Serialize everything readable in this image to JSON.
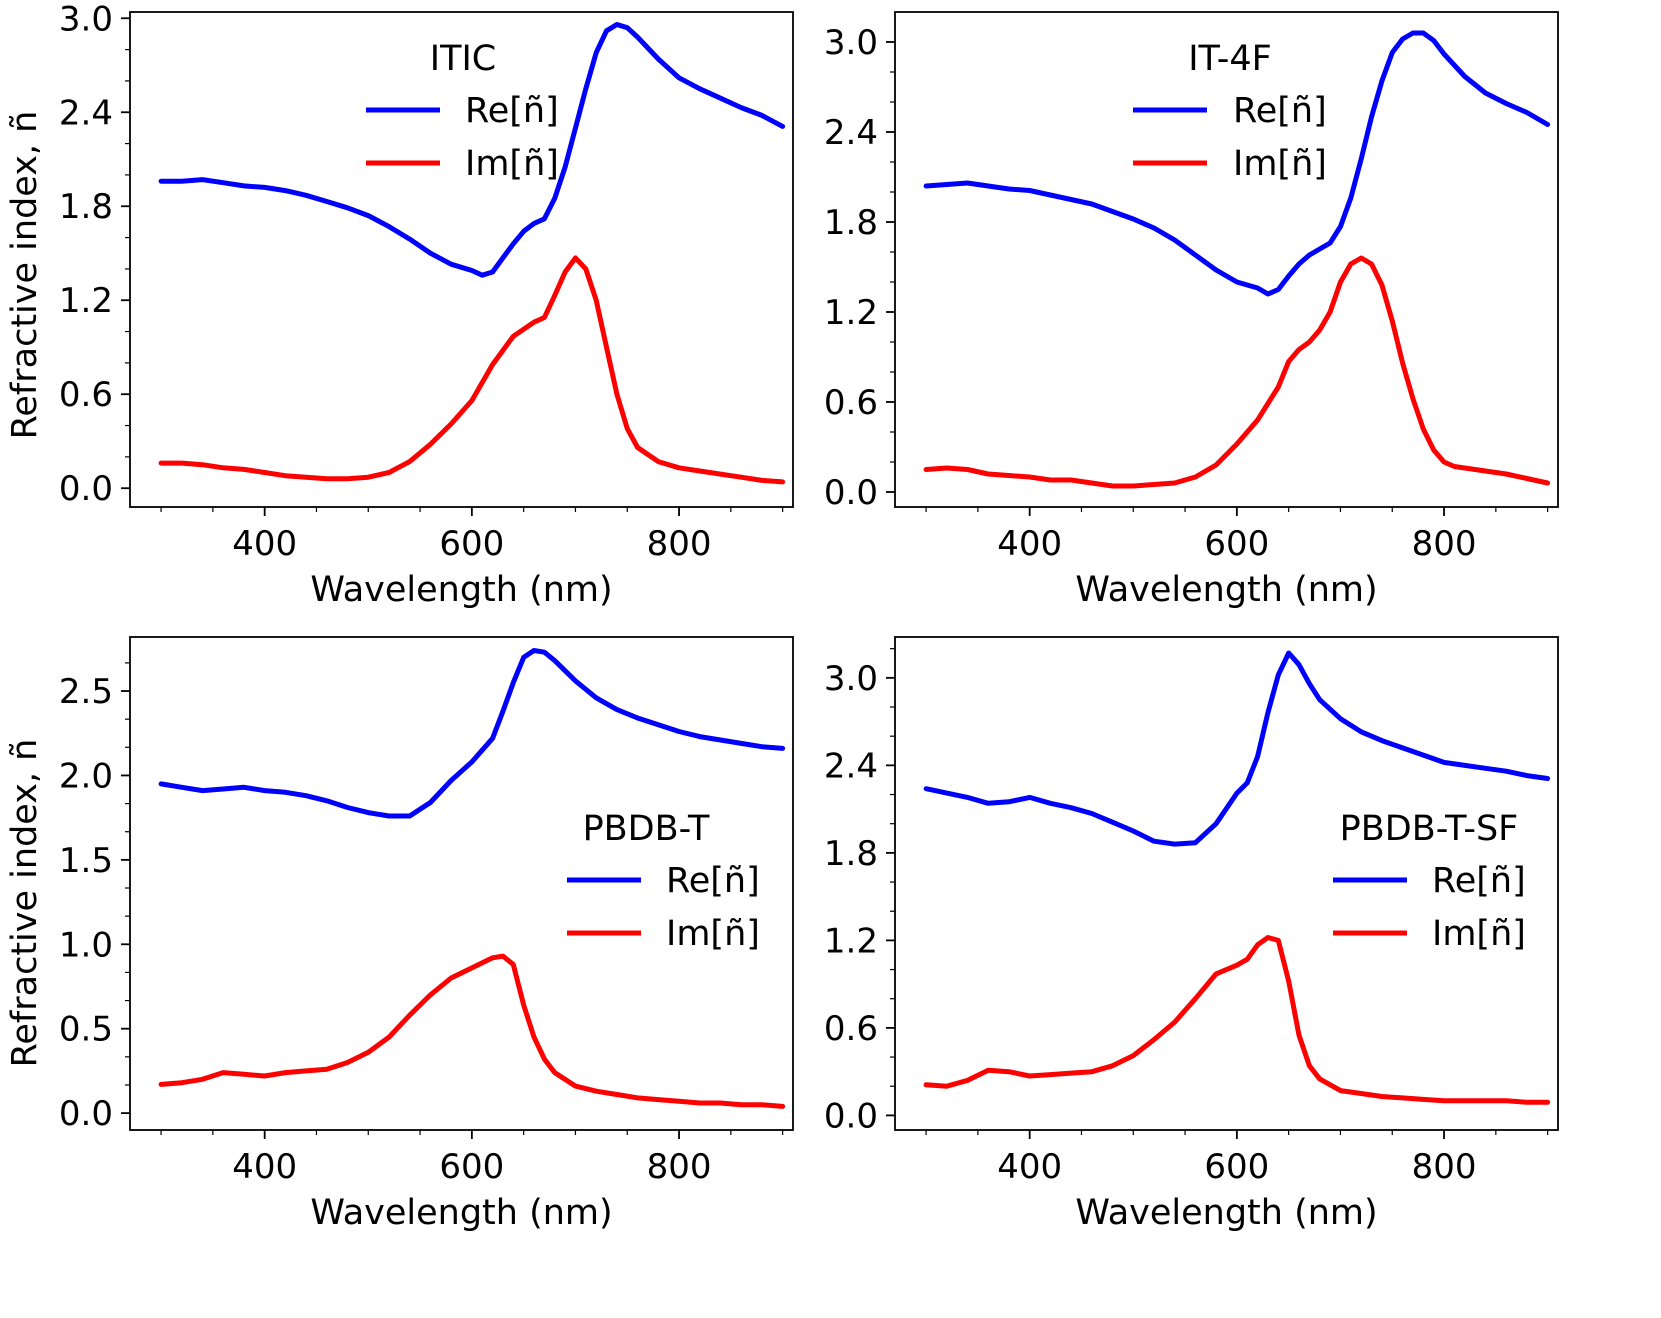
{
  "figure": {
    "ylabel": "Refractive index, ñ",
    "xlabel": "Wavelength (nm)"
  },
  "chart_data": [
    {
      "type": "line",
      "title": "ITIC",
      "xlabel": "Wavelength (nm)",
      "ylabel": "Refractive index, ñ",
      "xlim": [
        270,
        910
      ],
      "ylim": [
        -0.12,
        3.04
      ],
      "xticks": [
        400,
        600,
        800
      ],
      "xtick_labels": [
        "400",
        "600",
        "800"
      ],
      "yticks": [
        0.0,
        0.6,
        1.2,
        1.8,
        2.4,
        3.0
      ],
      "ytick_labels": [
        "0.0",
        "0.6",
        "1.2",
        "1.8",
        "2.4",
        "3.0"
      ],
      "legend": "upper-center",
      "series": [
        {
          "name": "Re[ñ]",
          "color": "#0000ff",
          "x": [
            300,
            320,
            340,
            360,
            380,
            400,
            420,
            440,
            460,
            480,
            500,
            520,
            540,
            560,
            580,
            600,
            610,
            620,
            630,
            640,
            650,
            660,
            670,
            680,
            690,
            700,
            710,
            720,
            730,
            740,
            750,
            760,
            780,
            800,
            820,
            840,
            860,
            880,
            900
          ],
          "y": [
            1.96,
            1.96,
            1.97,
            1.95,
            1.93,
            1.92,
            1.9,
            1.87,
            1.83,
            1.79,
            1.74,
            1.67,
            1.59,
            1.5,
            1.43,
            1.39,
            1.36,
            1.38,
            1.47,
            1.56,
            1.64,
            1.69,
            1.72,
            1.85,
            2.05,
            2.3,
            2.55,
            2.78,
            2.92,
            2.96,
            2.94,
            2.88,
            2.74,
            2.62,
            2.55,
            2.49,
            2.43,
            2.38,
            2.31
          ]
        },
        {
          "name": "Im[ñ]",
          "color": "#ff0000",
          "x": [
            300,
            320,
            340,
            360,
            380,
            400,
            420,
            440,
            460,
            480,
            500,
            520,
            540,
            560,
            580,
            600,
            620,
            640,
            660,
            670,
            680,
            690,
            700,
            710,
            720,
            730,
            740,
            750,
            760,
            780,
            800,
            820,
            840,
            860,
            880,
            900
          ],
          "y": [
            0.16,
            0.16,
            0.15,
            0.13,
            0.12,
            0.1,
            0.08,
            0.07,
            0.06,
            0.06,
            0.07,
            0.1,
            0.17,
            0.28,
            0.41,
            0.56,
            0.79,
            0.97,
            1.06,
            1.09,
            1.23,
            1.38,
            1.47,
            1.4,
            1.2,
            0.9,
            0.6,
            0.38,
            0.26,
            0.17,
            0.13,
            0.11,
            0.09,
            0.07,
            0.05,
            0.04
          ]
        }
      ]
    },
    {
      "type": "line",
      "title": "IT-4F",
      "xlabel": "Wavelength (nm)",
      "ylabel": "",
      "xlim": [
        270,
        910
      ],
      "ylim": [
        -0.1,
        3.2
      ],
      "xticks": [
        400,
        600,
        800
      ],
      "xtick_labels": [
        "400",
        "600",
        "800"
      ],
      "yticks": [
        0.0,
        0.6,
        1.2,
        1.8,
        2.4,
        3.0
      ],
      "ytick_labels": [
        "0.0",
        "0.6",
        "1.2",
        "1.8",
        "2.4",
        "3.0"
      ],
      "legend": "upper-center",
      "series": [
        {
          "name": "Re[ñ]",
          "color": "#0000ff",
          "x": [
            300,
            320,
            340,
            360,
            380,
            400,
            420,
            440,
            460,
            480,
            500,
            520,
            540,
            560,
            580,
            600,
            620,
            630,
            640,
            650,
            660,
            670,
            680,
            690,
            700,
            710,
            720,
            730,
            740,
            750,
            760,
            770,
            780,
            790,
            800,
            820,
            840,
            860,
            880,
            900
          ],
          "y": [
            2.04,
            2.05,
            2.06,
            2.04,
            2.02,
            2.01,
            1.98,
            1.95,
            1.92,
            1.87,
            1.82,
            1.76,
            1.68,
            1.58,
            1.48,
            1.4,
            1.36,
            1.32,
            1.35,
            1.44,
            1.52,
            1.58,
            1.62,
            1.66,
            1.77,
            1.96,
            2.22,
            2.5,
            2.74,
            2.93,
            3.02,
            3.06,
            3.06,
            3.01,
            2.92,
            2.77,
            2.66,
            2.59,
            2.53,
            2.45
          ]
        },
        {
          "name": "Im[ñ]",
          "color": "#ff0000",
          "x": [
            300,
            320,
            340,
            360,
            380,
            400,
            420,
            440,
            460,
            480,
            500,
            520,
            540,
            560,
            580,
            600,
            620,
            640,
            650,
            660,
            670,
            680,
            690,
            700,
            710,
            720,
            730,
            740,
            750,
            760,
            770,
            780,
            790,
            800,
            810,
            820,
            840,
            860,
            880,
            900
          ],
          "y": [
            0.15,
            0.16,
            0.15,
            0.12,
            0.11,
            0.1,
            0.08,
            0.08,
            0.06,
            0.04,
            0.04,
            0.05,
            0.06,
            0.1,
            0.18,
            0.32,
            0.48,
            0.7,
            0.87,
            0.95,
            1.0,
            1.08,
            1.2,
            1.4,
            1.52,
            1.56,
            1.52,
            1.38,
            1.14,
            0.86,
            0.62,
            0.42,
            0.28,
            0.2,
            0.17,
            0.16,
            0.14,
            0.12,
            0.09,
            0.06
          ]
        }
      ]
    },
    {
      "type": "line",
      "title": "PBDB-T",
      "xlabel": "Wavelength (nm)",
      "ylabel": "Refractive index, ñ",
      "xlim": [
        270,
        910
      ],
      "ylim": [
        -0.1,
        2.82
      ],
      "xticks": [
        400,
        600,
        800
      ],
      "xtick_labels": [
        "400",
        "600",
        "800"
      ],
      "yticks": [
        0.0,
        0.5,
        1.0,
        1.5,
        2.0,
        2.5
      ],
      "ytick_labels": [
        "0.0",
        "0.5",
        "1.0",
        "1.5",
        "2.0",
        "2.5"
      ],
      "legend": "center-right",
      "series": [
        {
          "name": "Re[ñ]",
          "color": "#0000ff",
          "x": [
            300,
            320,
            340,
            360,
            380,
            400,
            420,
            440,
            460,
            480,
            500,
            520,
            540,
            560,
            580,
            600,
            620,
            630,
            640,
            650,
            660,
            670,
            680,
            700,
            720,
            740,
            760,
            780,
            800,
            820,
            840,
            860,
            880,
            900
          ],
          "y": [
            1.95,
            1.93,
            1.91,
            1.92,
            1.93,
            1.91,
            1.9,
            1.88,
            1.85,
            1.81,
            1.78,
            1.76,
            1.76,
            1.84,
            1.97,
            2.08,
            2.22,
            2.38,
            2.55,
            2.7,
            2.74,
            2.73,
            2.68,
            2.56,
            2.46,
            2.39,
            2.34,
            2.3,
            2.26,
            2.23,
            2.21,
            2.19,
            2.17,
            2.16
          ]
        },
        {
          "name": "Im[ñ]",
          "color": "#ff0000",
          "x": [
            300,
            320,
            340,
            360,
            380,
            400,
            420,
            440,
            460,
            480,
            500,
            520,
            540,
            560,
            580,
            600,
            620,
            630,
            640,
            650,
            660,
            670,
            680,
            700,
            720,
            740,
            760,
            780,
            800,
            820,
            840,
            860,
            880,
            900
          ],
          "y": [
            0.17,
            0.18,
            0.2,
            0.24,
            0.23,
            0.22,
            0.24,
            0.25,
            0.26,
            0.3,
            0.36,
            0.45,
            0.58,
            0.7,
            0.8,
            0.86,
            0.92,
            0.93,
            0.88,
            0.64,
            0.45,
            0.32,
            0.24,
            0.16,
            0.13,
            0.11,
            0.09,
            0.08,
            0.07,
            0.06,
            0.06,
            0.05,
            0.05,
            0.04
          ]
        }
      ]
    },
    {
      "type": "line",
      "title": "PBDB-T-SF",
      "xlabel": "Wavelength (nm)",
      "ylabel": "",
      "xlim": [
        270,
        910
      ],
      "ylim": [
        -0.1,
        3.28
      ],
      "xticks": [
        400,
        600,
        800
      ],
      "xtick_labels": [
        "400",
        "600",
        "800"
      ],
      "yticks": [
        0.0,
        0.6,
        1.2,
        1.8,
        2.4,
        3.0
      ],
      "ytick_labels": [
        "0.0",
        "0.6",
        "1.2",
        "1.8",
        "2.4",
        "3.0"
      ],
      "legend": "center-right",
      "series": [
        {
          "name": "Re[ñ]",
          "color": "#0000ff",
          "x": [
            300,
            320,
            340,
            360,
            380,
            400,
            420,
            440,
            460,
            480,
            500,
            520,
            540,
            560,
            580,
            600,
            610,
            620,
            630,
            640,
            650,
            660,
            670,
            680,
            700,
            720,
            740,
            760,
            780,
            800,
            820,
            840,
            860,
            880,
            900
          ],
          "y": [
            2.24,
            2.21,
            2.18,
            2.14,
            2.15,
            2.18,
            2.14,
            2.11,
            2.07,
            2.01,
            1.95,
            1.88,
            1.86,
            1.87,
            2.0,
            2.21,
            2.28,
            2.46,
            2.76,
            3.02,
            3.17,
            3.09,
            2.96,
            2.85,
            2.72,
            2.63,
            2.57,
            2.52,
            2.47,
            2.42,
            2.4,
            2.38,
            2.36,
            2.33,
            2.31
          ]
        },
        {
          "name": "Im[ñ]",
          "color": "#ff0000",
          "x": [
            300,
            320,
            340,
            360,
            380,
            400,
            420,
            440,
            460,
            480,
            500,
            520,
            540,
            560,
            580,
            600,
            610,
            620,
            630,
            640,
            650,
            660,
            670,
            680,
            700,
            720,
            740,
            760,
            780,
            800,
            820,
            840,
            860,
            880,
            900
          ],
          "y": [
            0.21,
            0.2,
            0.24,
            0.31,
            0.3,
            0.27,
            0.28,
            0.29,
            0.3,
            0.34,
            0.41,
            0.52,
            0.64,
            0.8,
            0.97,
            1.03,
            1.07,
            1.17,
            1.22,
            1.2,
            0.92,
            0.55,
            0.34,
            0.25,
            0.17,
            0.15,
            0.13,
            0.12,
            0.11,
            0.1,
            0.1,
            0.1,
            0.1,
            0.09,
            0.09
          ]
        }
      ]
    }
  ]
}
